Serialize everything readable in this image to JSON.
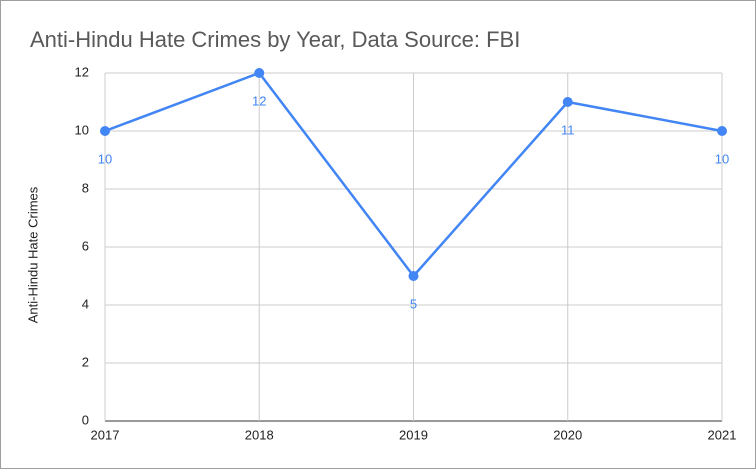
{
  "chart_data": {
    "type": "line",
    "title": "Anti-Hindu Hate Crimes by Year, Data Source: FBI",
    "y_label": "Anti-Hindu Hate Crimes",
    "x": [
      2017,
      2018,
      2019,
      2020,
      2021
    ],
    "values": [
      10,
      12,
      5,
      11,
      10
    ],
    "color": "#4285f4",
    "xlim": [
      2017,
      2021
    ],
    "xticks": [
      2017,
      2018,
      2019,
      2020,
      2021
    ],
    "ylim": [
      0,
      12
    ],
    "yticks": [
      0,
      2,
      4,
      6,
      8,
      10,
      12
    ],
    "grid": true
  }
}
